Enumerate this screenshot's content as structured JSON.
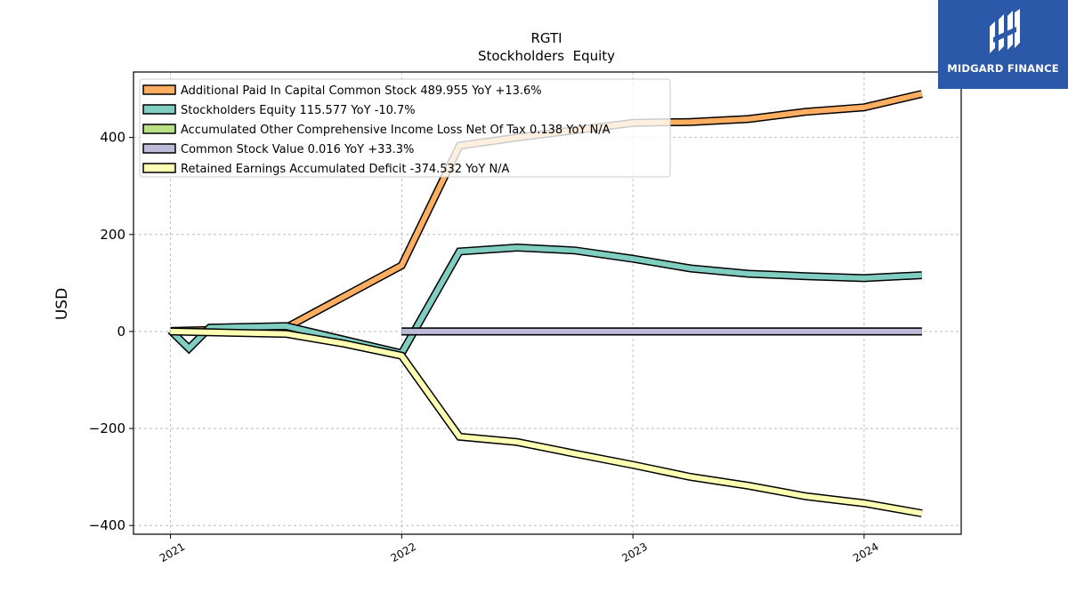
{
  "brand": {
    "name": "MIDGARD FINANCE",
    "bg_color": "#2b58a8"
  },
  "chart_data": {
    "type": "line",
    "title": "RGTI",
    "subtitle": "Stockholders  Equity",
    "xlabel": "",
    "ylabel": "USD",
    "xlim": [
      2020.84,
      2024.42
    ],
    "ylim": [
      -418,
      535
    ],
    "x_ticks": [
      {
        "value": 2021,
        "label": "2021"
      },
      {
        "value": 2022,
        "label": "2022"
      },
      {
        "value": 2023,
        "label": "2023"
      },
      {
        "value": 2024,
        "label": "2024"
      }
    ],
    "y_ticks": [
      {
        "value": 400,
        "label": "400"
      },
      {
        "value": 200,
        "label": "200"
      },
      {
        "value": 0,
        "label": "0"
      },
      {
        "value": -200,
        "label": "−200"
      },
      {
        "value": -400,
        "label": "−400"
      }
    ],
    "grid": true,
    "legend_position": "top-left",
    "series": [
      {
        "name": "Additional Paid In Capital Common Stock  489.955 YoY +13.6%",
        "color": "#fdae61",
        "points": [
          [
            2021.0,
            1
          ],
          [
            2021.25,
            4
          ],
          [
            2021.5,
            8
          ],
          [
            2022.0,
            136
          ],
          [
            2022.25,
            383
          ],
          [
            2022.5,
            400
          ],
          [
            2022.75,
            415
          ],
          [
            2023.0,
            430
          ],
          [
            2023.25,
            432
          ],
          [
            2023.5,
            438
          ],
          [
            2023.75,
            453
          ],
          [
            2024.0,
            462
          ],
          [
            2024.25,
            490
          ]
        ]
      },
      {
        "name": "Stockholders Equity  115.577 YoY -10.7%",
        "color": "#80cdc1",
        "points": [
          [
            2021.0,
            2
          ],
          [
            2021.08,
            -35
          ],
          [
            2021.17,
            8
          ],
          [
            2021.5,
            11
          ],
          [
            2022.0,
            -45
          ],
          [
            2022.25,
            165
          ],
          [
            2022.5,
            173
          ],
          [
            2022.75,
            167
          ],
          [
            2023.0,
            150
          ],
          [
            2023.25,
            130
          ],
          [
            2023.5,
            119
          ],
          [
            2023.75,
            114
          ],
          [
            2024.0,
            110
          ],
          [
            2024.25,
            116
          ]
        ]
      },
      {
        "name": "Accumulated Other Comprehensive Income Loss Net Of Tax  0.138 YoY N/A",
        "color": "#b8e186",
        "points": [
          [
            2022.0,
            0.1
          ],
          [
            2024.25,
            0.1
          ]
        ]
      },
      {
        "name": "Common Stock Value  0.016 YoY +33.3%",
        "color": "#bebada",
        "points": [
          [
            2022.0,
            0
          ],
          [
            2024.25,
            0
          ]
        ]
      },
      {
        "name": "Retained Earnings Accumulated Deficit  -374.532 YoY N/A",
        "color": "#ffffb3",
        "points": [
          [
            2021.0,
            0
          ],
          [
            2021.5,
            -5
          ],
          [
            2021.75,
            -25
          ],
          [
            2022.0,
            -50
          ],
          [
            2022.25,
            -217
          ],
          [
            2022.5,
            -228
          ],
          [
            2022.75,
            -252
          ],
          [
            2023.0,
            -275
          ],
          [
            2023.25,
            -300
          ],
          [
            2023.5,
            -318
          ],
          [
            2023.75,
            -340
          ],
          [
            2024.0,
            -354
          ],
          [
            2024.25,
            -375
          ]
        ]
      }
    ]
  }
}
